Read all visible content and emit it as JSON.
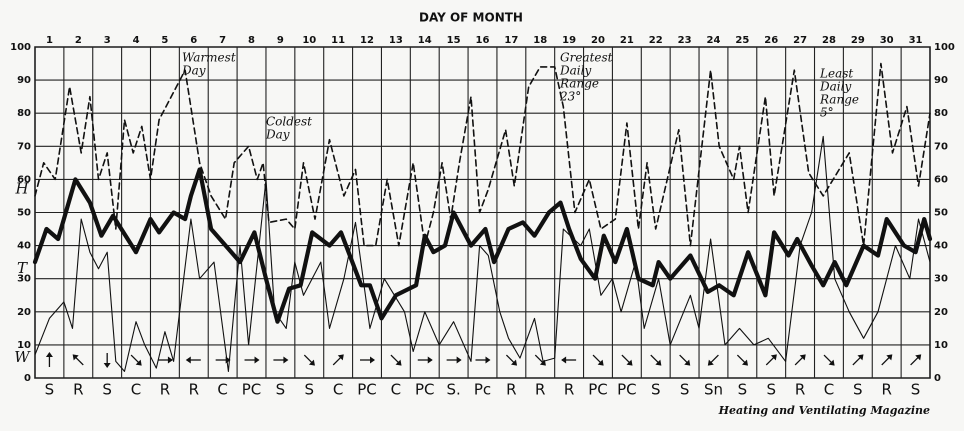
{
  "chart_data": {
    "type": "line",
    "xlabel": "DAY OF MONTH",
    "categories": [
      "1",
      "2",
      "3",
      "4",
      "5",
      "6",
      "7",
      "8",
      "9",
      "10",
      "11",
      "12",
      "13",
      "14",
      "15",
      "16",
      "17",
      "18",
      "19",
      "20",
      "21",
      "22",
      "23",
      "24",
      "25",
      "26",
      "27",
      "28",
      "29",
      "30",
      "31"
    ],
    "conditions": [
      "S",
      "R",
      "S",
      "C",
      "R",
      "R",
      "C",
      "PC",
      "S",
      "S",
      "C",
      "PC",
      "C",
      "PC",
      "S.",
      "Pc",
      "R",
      "R",
      "R",
      "PC",
      "PC",
      "S",
      "S",
      "Sn",
      "S",
      "S",
      "R",
      "C",
      "S",
      "R",
      "S"
    ],
    "xlim": [
      0,
      31
    ],
    "ylim": [
      0,
      100
    ],
    "yticks": [
      0,
      10,
      20,
      30,
      40,
      50,
      60,
      70,
      80,
      90,
      100
    ],
    "grid": true,
    "series": [
      {
        "name": "H",
        "color": "#111111",
        "style": "dashed",
        "x": [
          0,
          0.3,
          0.7,
          1.2,
          1.6,
          1.9,
          2.2,
          2.5,
          2.8,
          3.1,
          3.4,
          3.7,
          4.0,
          4.3,
          5.2,
          5.7,
          6.1,
          6.6,
          6.9,
          7.4,
          7.7,
          7.9,
          8.1,
          8.7,
          9.0,
          9.3,
          9.7,
          10.2,
          10.7,
          11.1,
          11.4,
          11.8,
          12.2,
          12.6,
          13.1,
          13.5,
          13.8,
          14.1,
          14.4,
          14.7,
          15.1,
          15.4,
          15.7,
          16.3,
          16.6,
          17.1,
          17.5,
          18.0,
          18.3,
          18.7,
          19.2,
          19.6,
          20.1,
          20.5,
          20.9,
          21.2,
          21.5,
          22.3,
          22.7,
          23.4,
          23.7,
          24.2,
          24.4,
          24.7,
          25.3,
          25.6,
          26.3,
          26.8,
          27.3,
          28.2,
          28.7,
          29.3,
          29.7,
          30.2,
          30.6,
          31.0
        ],
        "values": [
          55,
          65,
          60,
          88,
          68,
          85,
          60,
          68,
          45,
          78,
          68,
          76,
          60,
          78,
          93,
          65,
          55,
          48,
          65,
          70,
          60,
          65,
          47,
          48,
          45,
          65,
          48,
          72,
          55,
          63,
          40,
          40,
          60,
          40,
          65,
          40,
          50,
          65,
          48,
          65,
          85,
          50,
          57,
          75,
          58,
          88,
          94,
          94,
          82,
          50,
          60,
          45,
          48,
          77,
          45,
          65,
          45,
          75,
          40,
          93,
          70,
          60,
          70,
          50,
          85,
          55,
          93,
          62,
          55,
          68,
          40,
          95,
          68,
          82,
          58,
          80
        ]
      },
      {
        "name": "T",
        "color": "#111111",
        "style": "thick",
        "x": [
          0,
          0.4,
          0.8,
          1.4,
          1.9,
          2.3,
          2.7,
          3.5,
          4.0,
          4.3,
          4.8,
          5.2,
          5.4,
          5.7,
          6.1,
          7.1,
          7.6,
          8.0,
          8.4,
          8.8,
          9.2,
          9.6,
          10.2,
          10.6,
          11.3,
          11.6,
          12.0,
          12.5,
          13.2,
          13.5,
          13.8,
          14.2,
          14.5,
          15.1,
          15.6,
          15.9,
          16.4,
          16.9,
          17.3,
          17.8,
          18.2,
          18.5,
          18.9,
          19.4,
          19.7,
          20.1,
          20.5,
          20.9,
          21.4,
          21.6,
          22.0,
          22.7,
          23.3,
          23.7,
          24.2,
          24.7,
          25.3,
          25.6,
          26.1,
          26.4,
          26.9,
          27.3,
          27.7,
          28.1,
          28.7,
          29.2,
          29.5,
          30.1,
          30.5,
          30.8,
          31.0
        ],
        "values": [
          35,
          45,
          42,
          60,
          53,
          43,
          49,
          38,
          48,
          44,
          50,
          48,
          55,
          63,
          45,
          35,
          44,
          30,
          17,
          27,
          28,
          44,
          40,
          44,
          28,
          28,
          18,
          25,
          28,
          43,
          38,
          40,
          50,
          40,
          45,
          35,
          45,
          47,
          43,
          50,
          53,
          45,
          36,
          30,
          43,
          35,
          45,
          30,
          28,
          35,
          30,
          37,
          26,
          28,
          25,
          38,
          25,
          44,
          37,
          42,
          34,
          28,
          35,
          28,
          40,
          37,
          48,
          40,
          38,
          48,
          42
        ]
      },
      {
        "name": "W",
        "color": "#111111",
        "style": "thin",
        "x": [
          0,
          0.5,
          1.0,
          1.3,
          1.6,
          1.9,
          2.2,
          2.5,
          2.8,
          3.1,
          3.5,
          3.8,
          4.2,
          4.5,
          4.8,
          5.4,
          5.7,
          6.2,
          6.7,
          7.1,
          7.4,
          8.0,
          8.3,
          8.7,
          9.0,
          9.3,
          9.9,
          10.2,
          10.7,
          11.1,
          11.6,
          12.1,
          12.8,
          13.1,
          13.5,
          14.0,
          14.5,
          15.1,
          15.4,
          15.7,
          16.1,
          16.4,
          16.8,
          17.3,
          17.6,
          18.0,
          18.3,
          18.9,
          19.2,
          19.6,
          20.0,
          20.3,
          20.8,
          21.1,
          21.6,
          22.0,
          22.7,
          23.0,
          23.4,
          23.9,
          24.4,
          24.9,
          25.4,
          26.0,
          26.5,
          26.9,
          27.3,
          27.7,
          28.2,
          28.7,
          29.2,
          29.8,
          30.3,
          30.6,
          31.0
        ],
        "values": [
          7,
          18,
          23,
          15,
          48,
          38,
          33,
          38,
          5,
          2,
          17,
          10,
          3,
          14,
          5,
          48,
          30,
          35,
          2,
          40,
          10,
          60,
          20,
          15,
          35,
          25,
          35,
          15,
          30,
          47,
          15,
          30,
          20,
          8,
          20,
          10,
          17,
          5,
          40,
          37,
          20,
          12,
          6,
          18,
          5,
          6,
          45,
          40,
          45,
          25,
          30,
          20,
          35,
          15,
          30,
          10,
          25,
          15,
          42,
          10,
          15,
          10,
          12,
          5,
          40,
          50,
          73,
          30,
          20,
          12,
          20,
          40,
          30,
          48,
          35
        ]
      }
    ],
    "annotations": [
      {
        "lines": [
          "Warmest",
          "Day"
        ]
      },
      {
        "lines": [
          "Coldest",
          "Day"
        ]
      },
      {
        "lines": [
          "Greatest",
          "Daily",
          "Range",
          "23°"
        ]
      },
      {
        "lines": [
          "Least",
          "Daily",
          "Range",
          "5°"
        ]
      }
    ],
    "source": "Heating and Ventilating Magazine"
  }
}
